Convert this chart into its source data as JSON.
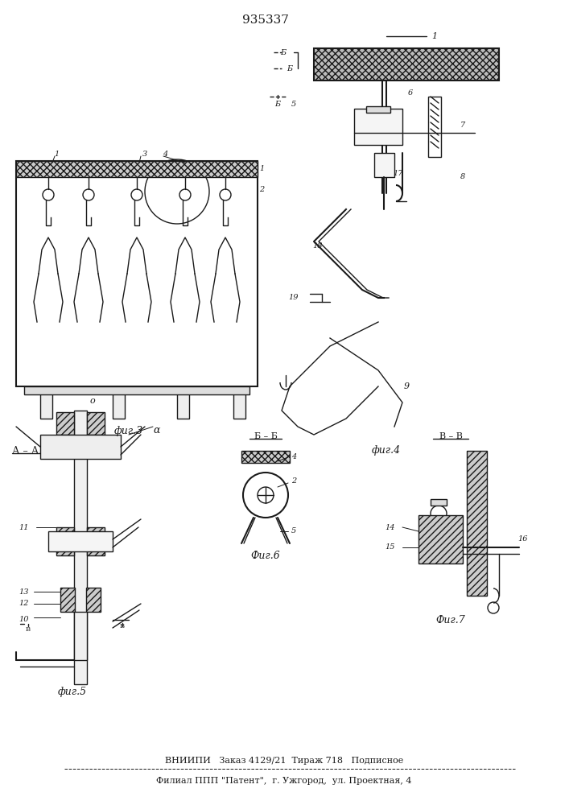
{
  "patent_number": "935337",
  "background_color": "#ffffff",
  "line_color": "#1a1a1a",
  "hatch_color": "#333333",
  "fig_width": 7.07,
  "fig_height": 10.0,
  "footer_line1": "ВНИИПИ   Заказ 4129/21  Тираж 718   Подписное",
  "footer_line2": "Филиал ППП \"Патент\",  г. Ужгород,  ул. Проектная, 4",
  "fig3_label": "фиг.3",
  "fig4_label": "фиг.4",
  "fig5_label": "фиг.5",
  "fig6_label": "Фиг.6",
  "fig7_label": "Фиг.7"
}
